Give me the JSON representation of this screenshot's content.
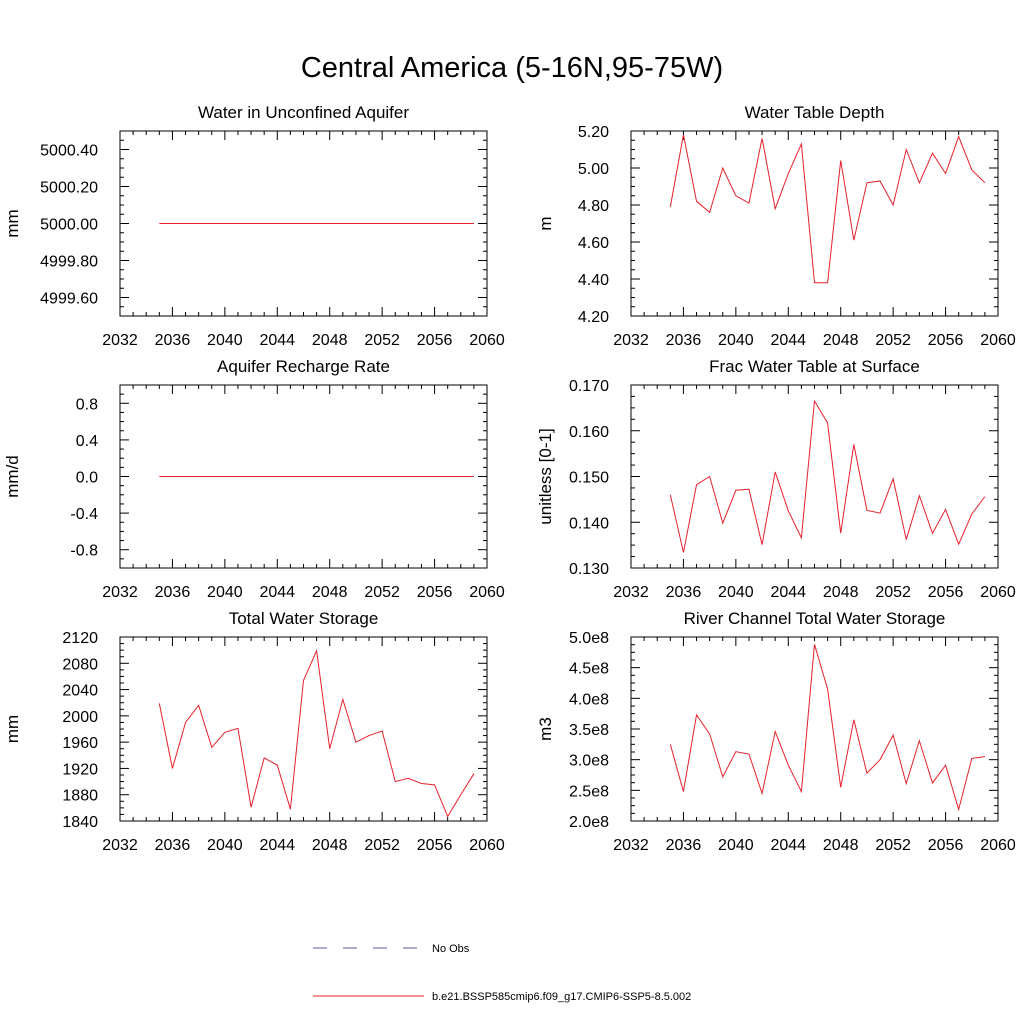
{
  "figure": {
    "title": "Central America (5-16N,95-75W)"
  },
  "legend": {
    "items": [
      {
        "label": "No Obs",
        "color": "#5a5aa0",
        "style": "dashed"
      },
      {
        "label": "b.e21.BSSP585cmip6.f09_g17.CMIP6-SSP5-8.5.002",
        "color": "#e8202a",
        "style": "solid"
      }
    ]
  },
  "chart_data": [
    {
      "type": "line",
      "title": "Water in Unconfined Aquifer",
      "ylabel": "mm",
      "xlim": [
        2032,
        2060
      ],
      "ylim": [
        4999.5,
        5000.5
      ],
      "xticks": [
        2032,
        2036,
        2040,
        2044,
        2048,
        2052,
        2056,
        2060
      ],
      "yticks": [
        4999.6,
        4999.8,
        5000.0,
        5000.2,
        5000.4
      ],
      "ytick_labels": [
        "4999.60",
        "4999.80",
        "5000.00",
        "5000.20",
        "5000.40"
      ],
      "color": "#e8202a",
      "x": [
        2035,
        2036,
        2037,
        2038,
        2039,
        2040,
        2041,
        2042,
        2043,
        2044,
        2045,
        2046,
        2047,
        2048,
        2049,
        2050,
        2051,
        2052,
        2053,
        2054,
        2055,
        2056,
        2057,
        2058,
        2059
      ],
      "y": [
        5000,
        5000,
        5000,
        5000,
        5000,
        5000,
        5000,
        5000,
        5000,
        5000,
        5000,
        5000,
        5000,
        5000,
        5000,
        5000,
        5000,
        5000,
        5000,
        5000,
        5000,
        5000,
        5000,
        5000,
        5000
      ]
    },
    {
      "type": "line",
      "title": "Water Table Depth",
      "ylabel": "m",
      "xlim": [
        2032,
        2060
      ],
      "ylim": [
        4.2,
        5.2
      ],
      "xticks": [
        2032,
        2036,
        2040,
        2044,
        2048,
        2052,
        2056,
        2060
      ],
      "yticks": [
        4.2,
        4.4,
        4.6,
        4.8,
        5.0,
        5.2
      ],
      "ytick_labels": [
        "4.20",
        "4.40",
        "4.60",
        "4.80",
        "5.00",
        "5.20"
      ],
      "color": "#e8202a",
      "x": [
        2035,
        2036,
        2037,
        2038,
        2039,
        2040,
        2041,
        2042,
        2043,
        2044,
        2045,
        2046,
        2047,
        2048,
        2049,
        2050,
        2051,
        2052,
        2053,
        2054,
        2055,
        2056,
        2057,
        2058,
        2059
      ],
      "y": [
        4.79,
        5.18,
        4.82,
        4.76,
        5.0,
        4.85,
        4.81,
        5.16,
        4.78,
        4.97,
        5.13,
        4.38,
        4.38,
        5.04,
        4.61,
        4.92,
        4.93,
        4.8,
        5.1,
        4.92,
        5.08,
        4.97,
        5.17,
        4.99,
        4.92
      ]
    },
    {
      "type": "line",
      "title": "Aquifer Recharge Rate",
      "ylabel": "mm/d",
      "xlim": [
        2032,
        2060
      ],
      "ylim": [
        -1.0,
        1.0
      ],
      "xticks": [
        2032,
        2036,
        2040,
        2044,
        2048,
        2052,
        2056,
        2060
      ],
      "yticks": [
        -0.8,
        -0.4,
        0.0,
        0.4,
        0.8
      ],
      "ytick_labels": [
        "-0.8",
        "-0.4",
        "0.0",
        "0.4",
        "0.8"
      ],
      "color": "#e8202a",
      "x": [
        2035,
        2036,
        2037,
        2038,
        2039,
        2040,
        2041,
        2042,
        2043,
        2044,
        2045,
        2046,
        2047,
        2048,
        2049,
        2050,
        2051,
        2052,
        2053,
        2054,
        2055,
        2056,
        2057,
        2058,
        2059
      ],
      "y": [
        0,
        0,
        0,
        0,
        0,
        0,
        0,
        0,
        0,
        0,
        0,
        0,
        0,
        0,
        0,
        0,
        0,
        0,
        0,
        0,
        0,
        0,
        0,
        0,
        0
      ]
    },
    {
      "type": "line",
      "title": "Frac Water Table at Surface",
      "ylabel": "unitless [0-1]",
      "xlim": [
        2032,
        2060
      ],
      "ylim": [
        0.13,
        0.17
      ],
      "xticks": [
        2032,
        2036,
        2040,
        2044,
        2048,
        2052,
        2056,
        2060
      ],
      "yticks": [
        0.13,
        0.14,
        0.15,
        0.16,
        0.17
      ],
      "ytick_labels": [
        "0.130",
        "0.140",
        "0.150",
        "0.160",
        "0.170"
      ],
      "color": "#e8202a",
      "x": [
        2035,
        2036,
        2037,
        2038,
        2039,
        2040,
        2041,
        2042,
        2043,
        2044,
        2045,
        2046,
        2047,
        2048,
        2049,
        2050,
        2051,
        2052,
        2053,
        2054,
        2055,
        2056,
        2057,
        2058,
        2059
      ],
      "y": [
        0.146,
        0.1334,
        0.1482,
        0.15,
        0.1398,
        0.147,
        0.1472,
        0.1351,
        0.151,
        0.1425,
        0.1366,
        0.1665,
        0.1617,
        0.1376,
        0.157,
        0.1426,
        0.142,
        0.1495,
        0.1362,
        0.1458,
        0.1376,
        0.1428,
        0.1352,
        0.1418,
        0.1456
      ]
    },
    {
      "type": "line",
      "title": "Total Water Storage",
      "ylabel": "mm",
      "xlim": [
        2032,
        2060
      ],
      "ylim": [
        1840,
        2120
      ],
      "xticks": [
        2032,
        2036,
        2040,
        2044,
        2048,
        2052,
        2056,
        2060
      ],
      "yticks": [
        1840,
        1880,
        1920,
        1960,
        2000,
        2040,
        2080,
        2120
      ],
      "ytick_labels": [
        "1840",
        "1880",
        "1920",
        "1960",
        "2000",
        "2040",
        "2080",
        "2120"
      ],
      "color": "#e8202a",
      "x": [
        2035,
        2036,
        2037,
        2038,
        2039,
        2040,
        2041,
        2042,
        2043,
        2044,
        2045,
        2046,
        2047,
        2048,
        2049,
        2050,
        2051,
        2052,
        2053,
        2054,
        2055,
        2056,
        2057,
        2058,
        2059
      ],
      "y": [
        2019,
        1920,
        1990,
        2016,
        1952,
        1975,
        1981,
        1861,
        1936,
        1925,
        1858,
        2054,
        2099,
        1950,
        2025,
        1960,
        1970,
        1977,
        1900,
        1905,
        1897,
        1895,
        1847,
        1880,
        1912
      ]
    },
    {
      "type": "line",
      "title": "River Channel Total Water Storage",
      "ylabel": "m3",
      "xlim": [
        2032,
        2060
      ],
      "ylim": [
        200000000,
        500000000
      ],
      "xticks": [
        2032,
        2036,
        2040,
        2044,
        2048,
        2052,
        2056,
        2060
      ],
      "yticks": [
        200000000,
        250000000,
        300000000,
        350000000,
        400000000,
        450000000,
        500000000
      ],
      "ytick_labels": [
        "2.0e8",
        "2.5e8",
        "3.0e8",
        "3.5e8",
        "4.0e8",
        "4.5e8",
        "5.0e8"
      ],
      "color": "#e8202a",
      "x": [
        2035,
        2036,
        2037,
        2038,
        2039,
        2040,
        2041,
        2042,
        2043,
        2044,
        2045,
        2046,
        2047,
        2048,
        2049,
        2050,
        2051,
        2052,
        2053,
        2054,
        2055,
        2056,
        2057,
        2058,
        2059
      ],
      "y": [
        325000000,
        248000000,
        373000000,
        342000000,
        272000000,
        313000000,
        309000000,
        245000000,
        346000000,
        291000000,
        248000000,
        488000000,
        415000000,
        255000000,
        365000000,
        278000000,
        300000000,
        340000000,
        261000000,
        331000000,
        262000000,
        291000000,
        219000000,
        302000000,
        305000000
      ]
    }
  ]
}
